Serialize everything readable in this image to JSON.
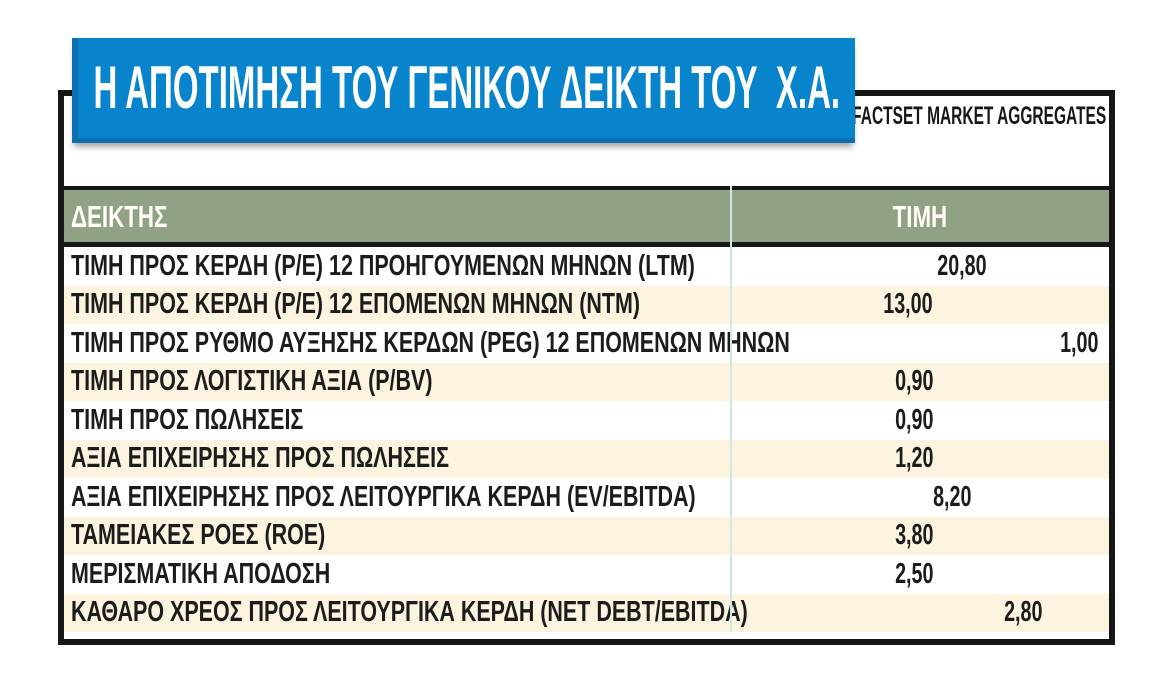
{
  "banner": {
    "title": "Η ΑΠΟΤΙΜΗΣΗ ΤΟΥ ΓΕΝΙΚΟΥ ΔΕΙΚΤΗ ΤΟΥ  Χ.Α."
  },
  "source": {
    "label": "ΠΗΓΗ: FACTSET MARKET AGGREGATES"
  },
  "table": {
    "columns": [
      {
        "label": "ΔΕΙΚΤΗΣ"
      },
      {
        "label": "ΤΙΜΗ"
      }
    ],
    "rows": [
      {
        "metric": "ΤΙΜΗ ΠΡΟΣ ΚΕΡΔΗ (P/E) 12 ΠΡΟΗΓΟΥΜΕΝΩΝ ΜΗΝΩΝ (LTM)",
        "value": "20,80"
      },
      {
        "metric": "ΤΙΜΗ ΠΡΟΣ ΚΕΡΔΗ (P/E) 12 ΕΠΟΜΕΝΩΝ ΜΗΝΩΝ (NTM)",
        "value": "13,00"
      },
      {
        "metric": "ΤΙΜΗ ΠΡΟΣ ΡΥΘΜΟ ΑΥΞΗΣΗΣ ΚΕΡΔΩΝ (PEG) 12 ΕΠΟΜΕΝΩΝ ΜΗΝΩΝ",
        "value": "1,00"
      },
      {
        "metric": "ΤΙΜΗ ΠΡΟΣ ΛΟΓΙΣΤΙΚΗ ΑΞΙΑ (P/BV)",
        "value": "0,90"
      },
      {
        "metric": "ΤΙΜΗ ΠΡΟΣ ΠΩΛΗΣΕΙΣ",
        "value": "0,90"
      },
      {
        "metric": "ΑΞΙΑ ΕΠΙΧΕΙΡΗΣΗΣ ΠΡΟΣ ΠΩΛΗΣΕΙΣ",
        "value": "1,20"
      },
      {
        "metric": "ΑΞΙΑ ΕΠΙΧΕΙΡΗΣΗΣ ΠΡΟΣ ΛΕΙΤΟΥΡΓΙΚΑ ΚΕΡΔΗ (EV/EBITDA)",
        "value": "8,20"
      },
      {
        "metric": "ΤΑΜΕΙΑΚΕΣ ΡΟΕΣ (ROE)",
        "value": "3,80"
      },
      {
        "metric": "ΜΕΡΙΣΜΑΤΙΚΗ ΑΠΟΔΟΣΗ",
        "value": "2,50"
      },
      {
        "metric": "ΚΑΘΑΡΟ ΧΡΕΟΣ ΠΡΟΣ ΛΕΙΤΟΥΡΓΙΚΑ ΚΕΡΔΗ (NET DEBT/EBITDA)",
        "value": "2,80"
      }
    ]
  },
  "colors": {
    "banner_blue": "#0884cd",
    "banner_blue_dark": "#0c6fae",
    "header_green": "#91a183",
    "row_cream": "#fdf4e0",
    "row_white": "#ffffff",
    "frame_black": "#161616",
    "column_divider": "#cfe8e4",
    "text_black": "#1c1c1c"
  },
  "chart_data": {
    "type": "table",
    "title": "Η ΑΠΟΤΙΜΗΣΗ ΤΟΥ ΓΕΝΙΚΟΥ ΔΕΙΚΤΗ ΤΟΥ Χ.Α.",
    "source": "ΠΗΓΗ: FACTSET MARKET AGGREGATES",
    "columns": [
      "ΔΕΙΚΤΗΣ",
      "ΤΙΜΗ"
    ],
    "rows": [
      [
        "ΤΙΜΗ ΠΡΟΣ ΚΕΡΔΗ (P/E) 12 ΠΡΟΗΓΟΥΜΕΝΩΝ ΜΗΝΩΝ (LTM)",
        20.8
      ],
      [
        "ΤΙΜΗ ΠΡΟΣ ΚΕΡΔΗ (P/E) 12 ΕΠΟΜΕΝΩΝ ΜΗΝΩΝ (NTM)",
        13.0
      ],
      [
        "ΤΙΜΗ ΠΡΟΣ ΡΥΘΜΟ ΑΥΞΗΣΗΣ ΚΕΡΔΩΝ (PEG) 12 ΕΠΟΜΕΝΩΝ ΜΗΝΩΝ",
        1.0
      ],
      [
        "ΤΙΜΗ ΠΡΟΣ ΛΟΓΙΣΤΙΚΗ ΑΞΙΑ (P/BV)",
        0.9
      ],
      [
        "ΤΙΜΗ ΠΡΟΣ ΠΩΛΗΣΕΙΣ",
        0.9
      ],
      [
        "ΑΞΙΑ ΕΠΙΧΕΙΡΗΣΗΣ ΠΡΟΣ ΠΩΛΗΣΕΙΣ",
        1.2
      ],
      [
        "ΑΞΙΑ ΕΠΙΧΕΙΡΗΣΗΣ ΠΡΟΣ ΛΕΙΤΟΥΡΓΙΚΑ ΚΕΡΔΗ (EV/EBITDA)",
        8.2
      ],
      [
        "ΤΑΜΕΙΑΚΕΣ ΡΟΕΣ (ROE)",
        3.8
      ],
      [
        "ΜΕΡΙΣΜΑΤΙΚΗ ΑΠΟΔΟΣΗ",
        2.5
      ],
      [
        "ΚΑΘΑΡΟ ΧΡΕΟΣ ΠΡΟΣ ΛΕΙΤΟΥΡΓΙΚΑ ΚΕΡΔΗ (NET DEBT/EBITDA)",
        2.8
      ]
    ]
  }
}
